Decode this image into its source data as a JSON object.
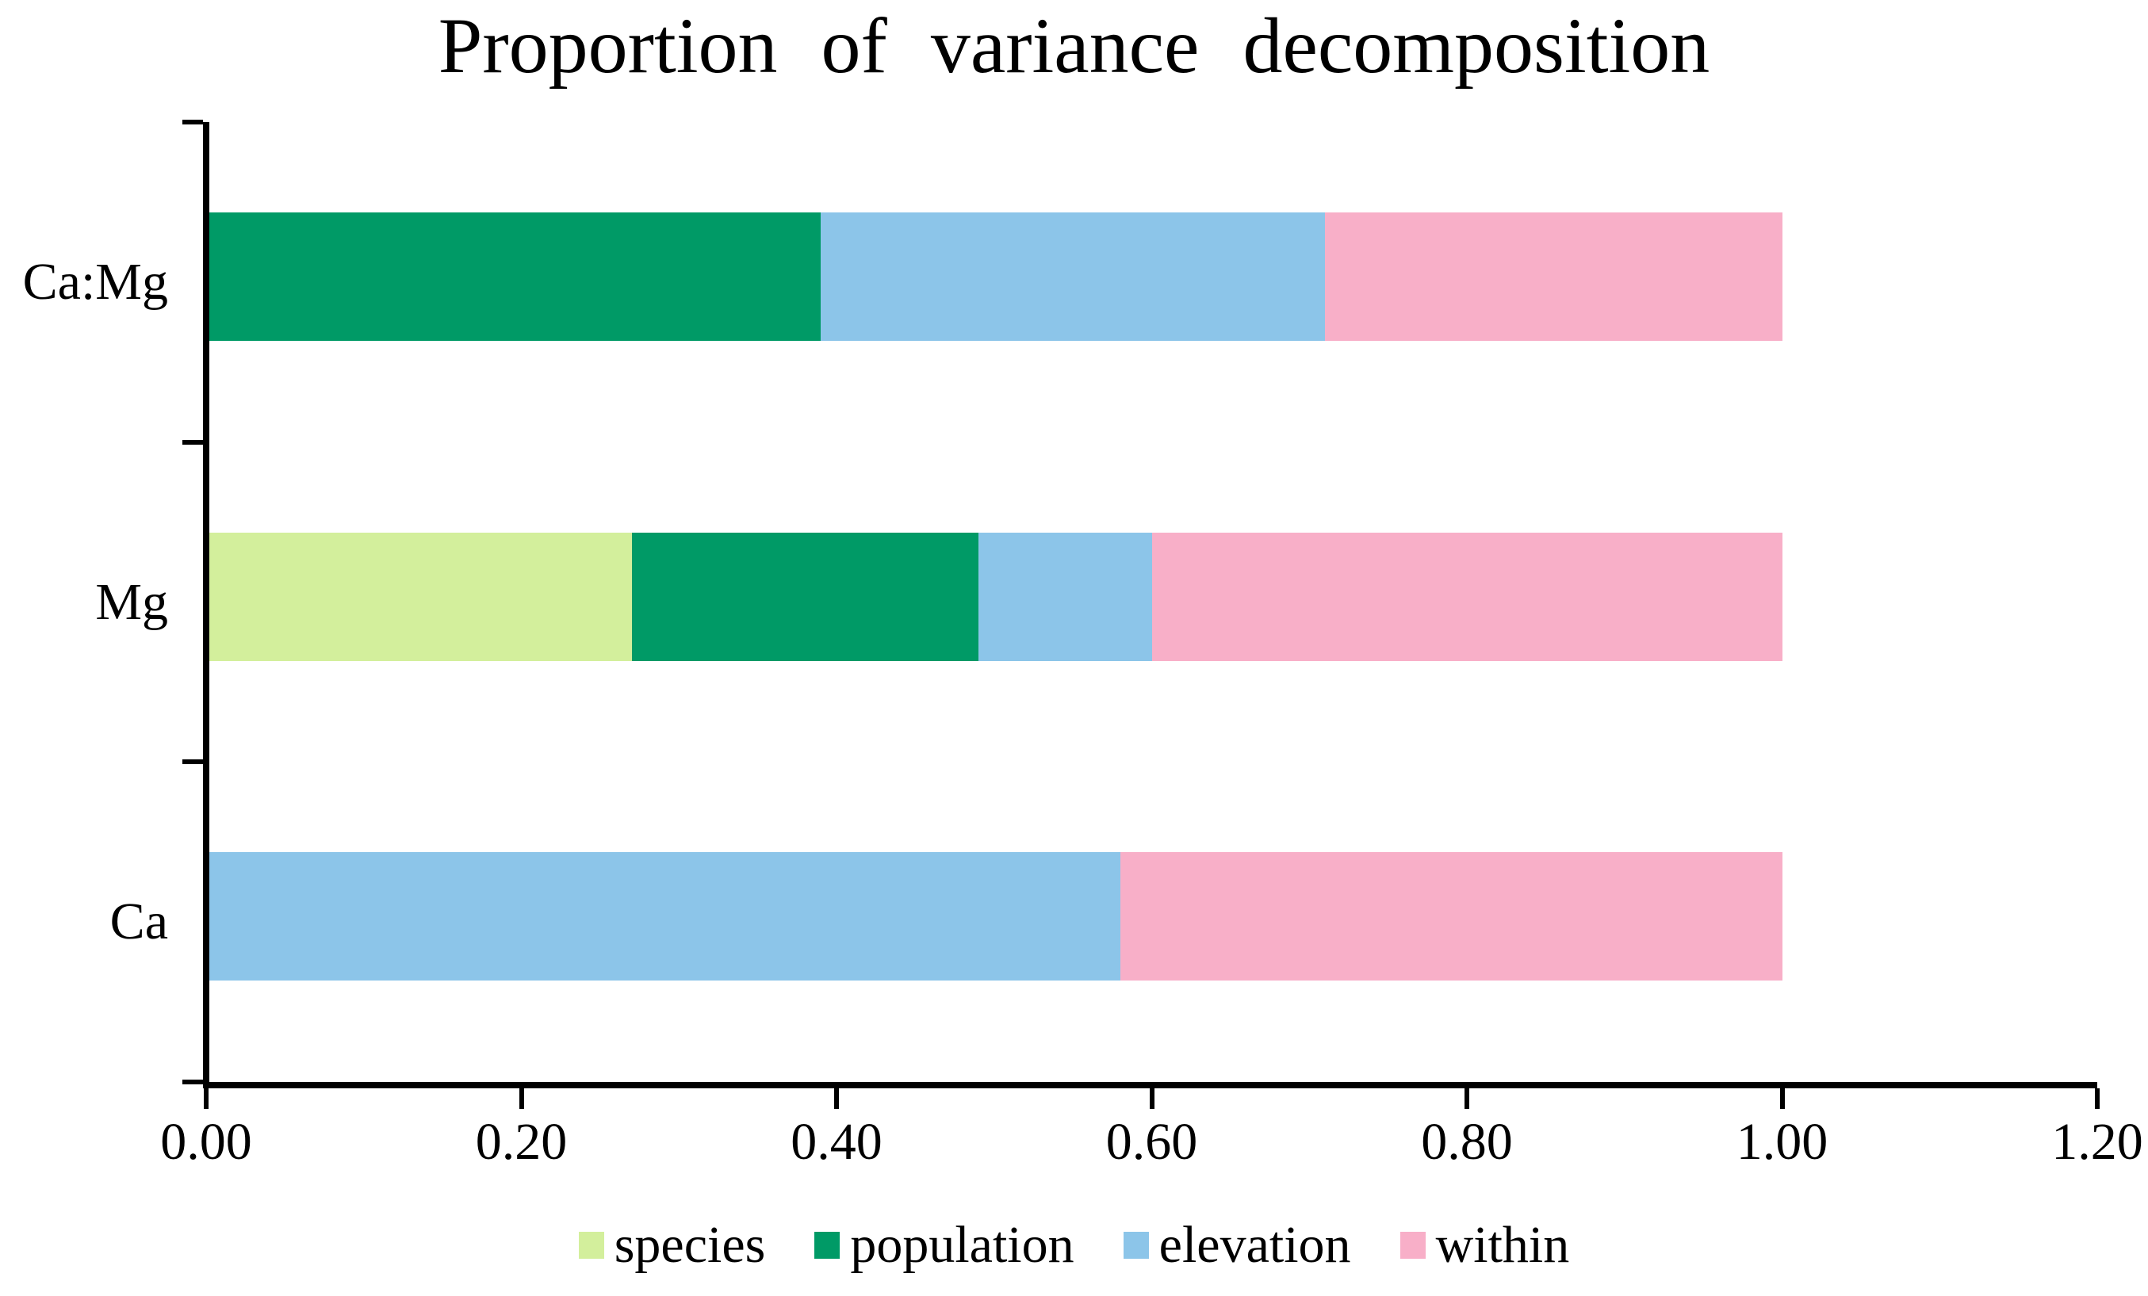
{
  "chart_data": {
    "type": "bar",
    "orientation": "horizontal",
    "stacked": true,
    "title": "Proportion of variance decomposition",
    "xlabel": "",
    "ylabel": "",
    "categories": [
      "Ca:Mg",
      "Mg",
      "Ca"
    ],
    "series": [
      {
        "name": "species",
        "color": "#d3ef9c",
        "values": [
          0.0,
          0.27,
          0.0
        ]
      },
      {
        "name": "population",
        "color": "#009a66",
        "values": [
          0.39,
          0.22,
          0.0
        ]
      },
      {
        "name": "elevation",
        "color": "#8cc5e9",
        "values": [
          0.32,
          0.11,
          0.58
        ]
      },
      {
        "name": "within",
        "color": "#f8afc8",
        "values": [
          0.29,
          0.4,
          0.42
        ]
      }
    ],
    "xlim": [
      0,
      1.2
    ],
    "xticks": [
      "0.00",
      "0.20",
      "0.40",
      "0.60",
      "0.80",
      "1.00",
      "1.20"
    ],
    "grid": false,
    "legend": [
      "species",
      "population",
      "elevation",
      "within"
    ],
    "legend_position": "bottom",
    "axis_color": "#000000",
    "text_color": "#000000"
  }
}
